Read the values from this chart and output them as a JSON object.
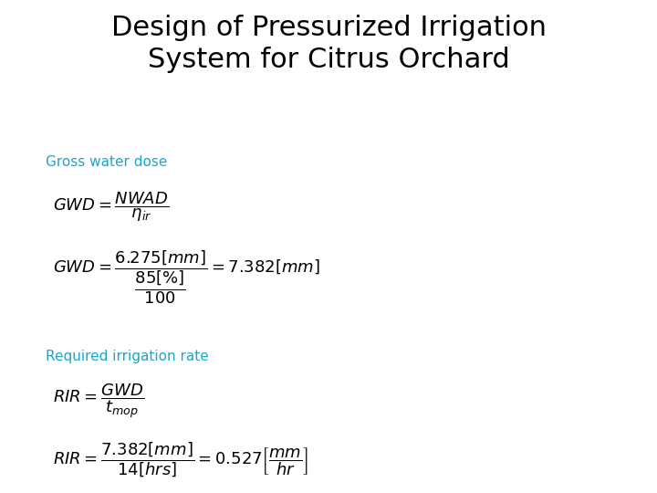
{
  "title_line1": "Design of Pressurized Irrigation",
  "title_line2": "System for Citrus Orchard",
  "title_fontsize": 22,
  "title_color": "#000000",
  "bg_color": "#ffffff",
  "section1_label": "Gross water dose",
  "section1_color": "#1AA7CC",
  "section1_fontsize": 11,
  "section2_label": "Required irrigation rate",
  "section2_color": "#1AA7CC",
  "section2_fontsize": 11,
  "formula_fontsize": 13,
  "formula_color": "#000000",
  "fig_width": 7.2,
  "fig_height": 5.4,
  "dpi": 100
}
